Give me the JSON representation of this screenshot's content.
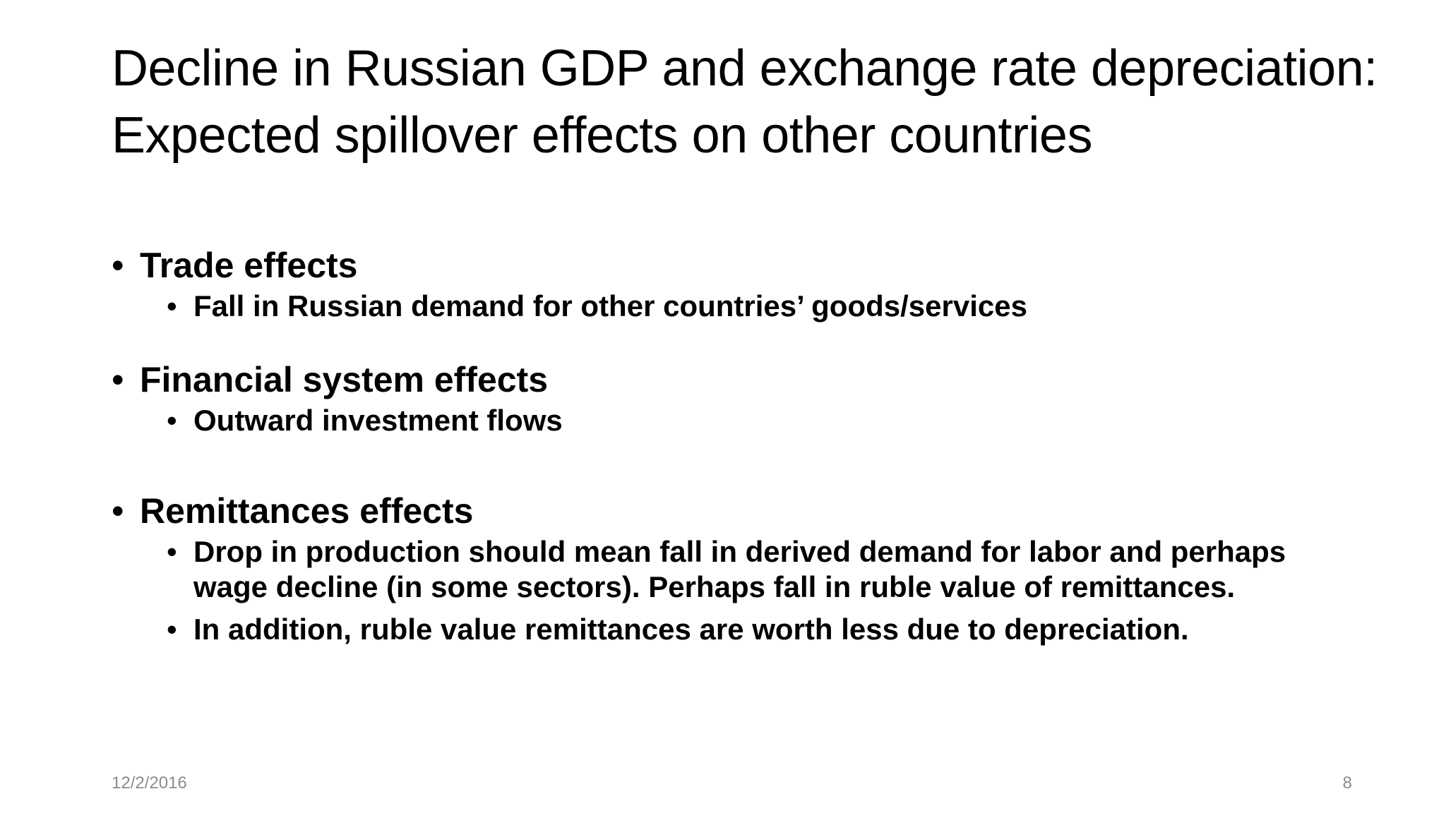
{
  "slide": {
    "title": "Decline in Russian GDP and exchange rate depreciation: Expected spillover effects on other countries",
    "bullet_glyph": "•",
    "sections": [
      {
        "heading": "Trade effects",
        "items": [
          "Fall in Russian demand for other countries’ goods/services"
        ]
      },
      {
        "heading": "Financial system effects",
        "items": [
          "Outward investment flows"
        ]
      },
      {
        "heading": "Remittances effects",
        "items": [
          "Drop in production should mean fall in derived demand for labor and perhaps wage decline (in some sectors). Perhaps fall in ruble value of remittances.",
          "In addition, ruble value remittances are worth less due to depreciation."
        ]
      }
    ],
    "footer": {
      "date": "12/2/2016",
      "page_number": "8"
    }
  }
}
